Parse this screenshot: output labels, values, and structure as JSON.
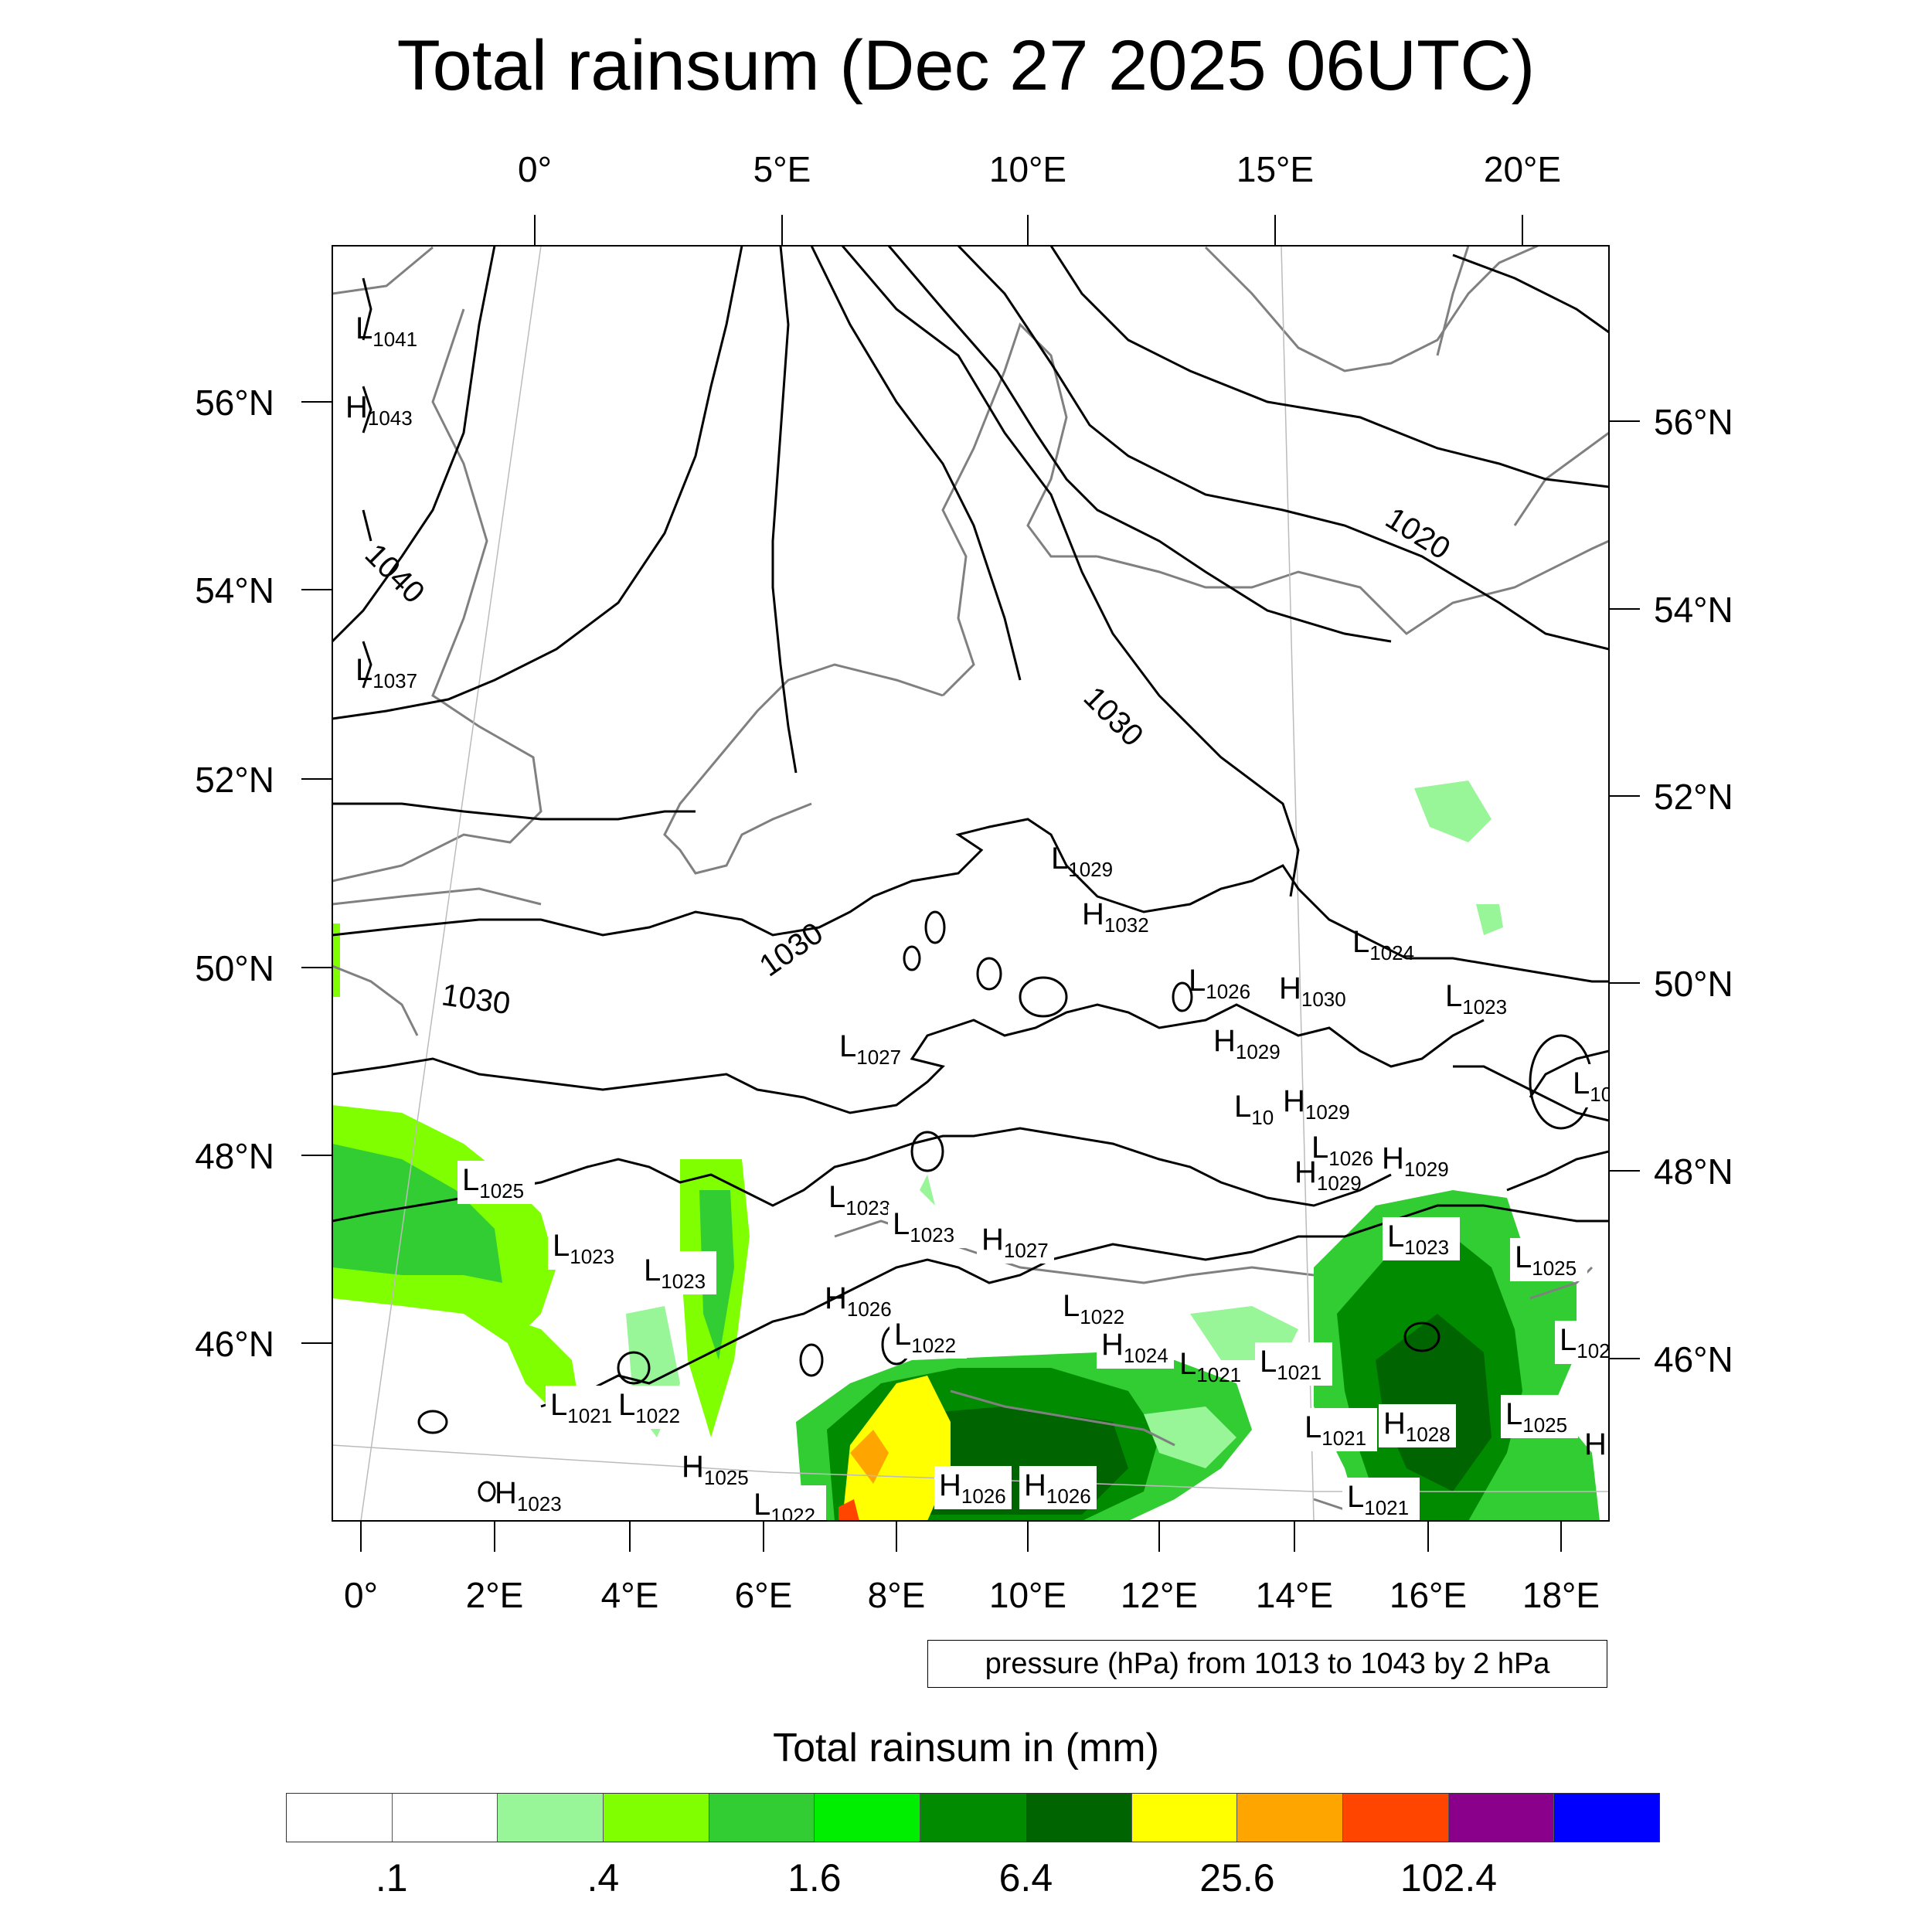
{
  "title": "Total rainsum (Dec 27 2025 06UTC)",
  "top_axis_labels": [
    "0°",
    "5°E",
    "10°E",
    "15°E",
    "20°E"
  ],
  "bottom_axis_labels": [
    "0°",
    "2°E",
    "4°E",
    "6°E",
    "8°E",
    "10°E",
    "12°E",
    "14°E",
    "16°E",
    "18°E"
  ],
  "left_axis_labels": [
    "56°N",
    "54°N",
    "52°N",
    "50°N",
    "48°N",
    "46°N"
  ],
  "right_axis_labels": [
    "56°N",
    "54°N",
    "52°N",
    "50°N",
    "48°N",
    "46°N"
  ],
  "contour_labels": [
    "1020",
    "1030",
    "1040",
    "1030",
    "1030"
  ],
  "pressure_centers": [
    {
      "type": "L",
      "value": "1041"
    },
    {
      "type": "H",
      "value": "1043"
    },
    {
      "type": "L",
      "value": "1037"
    },
    {
      "type": "L",
      "value": "1029"
    },
    {
      "type": "H",
      "value": "1032"
    },
    {
      "type": "L",
      "value": "1027"
    },
    {
      "type": "L",
      "value": "1024"
    },
    {
      "type": "L",
      "value": "1026"
    },
    {
      "type": "H",
      "value": "1030"
    },
    {
      "type": "L",
      "value": "1023"
    },
    {
      "type": "H",
      "value": "1029"
    },
    {
      "type": "L",
      "value": "10"
    },
    {
      "type": "H",
      "value": "1029"
    },
    {
      "type": "L",
      "value": "1026"
    },
    {
      "type": "H",
      "value": "1029"
    },
    {
      "type": "H",
      "value": "1029"
    },
    {
      "type": "L",
      "value": "1025"
    },
    {
      "type": "L",
      "value": "1023"
    },
    {
      "type": "L",
      "value": "1023"
    },
    {
      "type": "L",
      "value": "1023"
    },
    {
      "type": "L",
      "value": "1023"
    },
    {
      "type": "H",
      "value": "1027"
    },
    {
      "type": "H",
      "value": "1026"
    },
    {
      "type": "L",
      "value": "1022"
    },
    {
      "type": "L",
      "value": "1022"
    },
    {
      "type": "H",
      "value": "1024"
    },
    {
      "type": "L",
      "value": "1021"
    },
    {
      "type": "L",
      "value": "1021"
    },
    {
      "type": "L",
      "value": "1023"
    },
    {
      "type": "L",
      "value": "1025"
    },
    {
      "type": "L",
      "value": "1021"
    },
    {
      "type": "L",
      "value": "1022"
    },
    {
      "type": "H",
      "value": "1025"
    },
    {
      "type": "H",
      "value": "1023"
    },
    {
      "type": "L",
      "value": "1022"
    },
    {
      "type": "H",
      "value": "1026"
    },
    {
      "type": "H",
      "value": "1026"
    },
    {
      "type": "L",
      "value": "1021"
    },
    {
      "type": "H",
      "value": "1028"
    },
    {
      "type": "L",
      "value": "1025"
    },
    {
      "type": "L",
      "value": "1021"
    },
    {
      "type": "L",
      "value": "1021"
    },
    {
      "type": "L",
      "value": "102"
    },
    {
      "type": "L",
      "value": "10"
    },
    {
      "type": "H",
      "value": ""
    }
  ],
  "contour_info": "pressure (hPa) from 1013 to 1043 by 2 hPa",
  "legend": {
    "title": "Total rainsum in (mm)",
    "colors": [
      "#ffffff",
      "#ffffff",
      "#98f598",
      "#80ff00",
      "#32cd32",
      "#00ee00",
      "#008b00",
      "#006400",
      "#ffff00",
      "#ffa500",
      "#ff4500",
      "#8b008b",
      "#0000ff"
    ],
    "tick_labels": [
      ".1",
      ".4",
      "1.6",
      "6.4",
      "25.6",
      "102.4"
    ]
  },
  "colors": {
    "contour": "#000000",
    "coastline": "#808080",
    "rain_light": "#98f598",
    "rain_mid": "#32cd32",
    "rain_heavy": "#006400",
    "rain_yellow": "#ffff00",
    "rain_orange": "#ffa500"
  }
}
